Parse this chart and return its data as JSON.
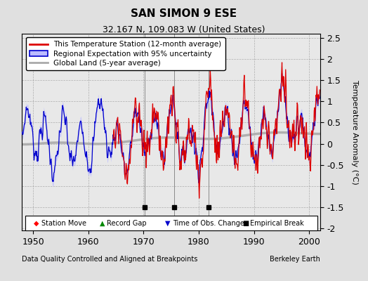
{
  "title": "SAN SIMON 9 ESE",
  "subtitle": "32.167 N, 109.083 W (United States)",
  "xlabel_left": "Data Quality Controlled and Aligned at Breakpoints",
  "xlabel_right": "Berkeley Earth",
  "ylabel": "Temperature Anomaly (°C)",
  "xlim": [
    1948,
    2002
  ],
  "ylim": [
    -2.05,
    2.6
  ],
  "yticks": [
    -2,
    -1.5,
    -1,
    -0.5,
    0,
    0.5,
    1,
    1.5,
    2,
    2.5
  ],
  "xticks": [
    1950,
    1960,
    1970,
    1980,
    1990,
    2000
  ],
  "bg_color": "#e0e0e0",
  "plot_bg_color": "#e8e8e8",
  "red_color": "#dd0000",
  "blue_color": "#0000cc",
  "blue_fill_color": "#bbbbff",
  "gray_color": "#aaaaaa",
  "title_fontsize": 11,
  "subtitle_fontsize": 9,
  "legend_fontsize": 7.5,
  "tick_fontsize": 9,
  "ylabel_fontsize": 8,
  "empirical_break_years": [
    1970.2,
    1975.5,
    1981.8
  ],
  "red_start_year": 1964.5
}
